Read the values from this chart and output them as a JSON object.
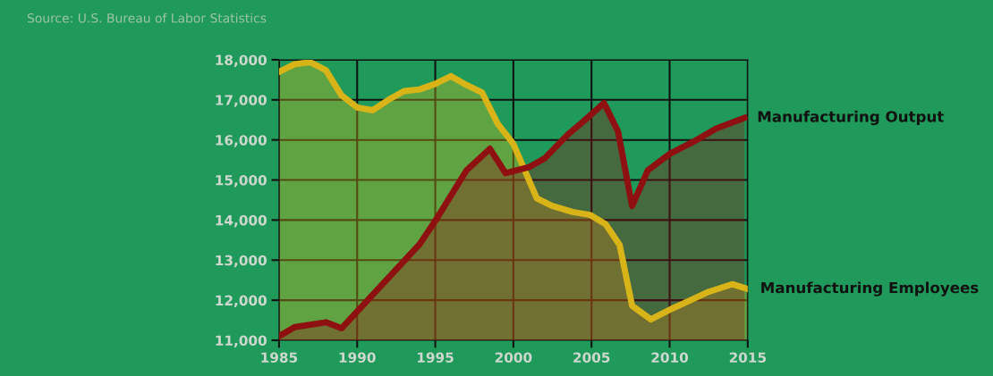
{
  "chart_data": {
    "type": "area",
    "xlim": [
      1985,
      2015
    ],
    "xticks": [
      1985,
      1990,
      1995,
      2000,
      2005,
      2010,
      2015
    ],
    "ylim": [
      11000,
      18000
    ],
    "yticks": [
      {
        "value": 11000,
        "label": "11,000"
      },
      {
        "value": 12000,
        "label": "12,000"
      },
      {
        "value": 13000,
        "label": "13,000"
      },
      {
        "value": 14000,
        "label": "14,000"
      },
      {
        "value": 15000,
        "label": "15,000"
      },
      {
        "value": 16000,
        "label": "16,000"
      },
      {
        "value": 17000,
        "label": "17,000"
      },
      {
        "value": 18000,
        "label": "18,000"
      }
    ],
    "grid": true,
    "annotations": [
      "Source: U.S. Bureau of Labor Statistics"
    ],
    "series": [
      {
        "name": "Manufacturing Employees",
        "color": "#d8b418",
        "x": [
          1985,
          1986,
          1987,
          1988,
          1989,
          1990,
          1991,
          1992,
          1993,
          1994,
          1995,
          1996,
          1997,
          1998,
          1999,
          2000,
          2001.5,
          2002.5,
          2003.8,
          2004.9,
          2005.9,
          2006.8,
          2007.6,
          2008.8,
          2010.1,
          2011.4,
          2012.5,
          2014,
          2015
        ],
        "values": [
          17700,
          17890,
          17940,
          17740,
          17110,
          16810,
          16740,
          17000,
          17220,
          17260,
          17400,
          17590,
          17370,
          17180,
          16400,
          15900,
          14540,
          14350,
          14200,
          14130,
          13900,
          13380,
          11860,
          11520,
          11780,
          12010,
          12210,
          12400,
          12280
        ]
      },
      {
        "name": "Manufacturing Output",
        "color": "#8e1010",
        "x": [
          1985,
          1986,
          1988,
          1989,
          1994,
          1995,
          1997,
          1998.5,
          1999.5,
          2001,
          2002,
          2003.5,
          2004.5,
          2005.8,
          2006.7,
          2007.6,
          2008.6,
          2010,
          2011.5,
          2013,
          2014.8
        ],
        "values": [
          11100,
          11330,
          11450,
          11300,
          13400,
          13980,
          15240,
          15780,
          15170,
          15320,
          15540,
          16140,
          16470,
          16920,
          16210,
          14350,
          15240,
          15650,
          15950,
          16290,
          16550
        ]
      }
    ]
  }
}
